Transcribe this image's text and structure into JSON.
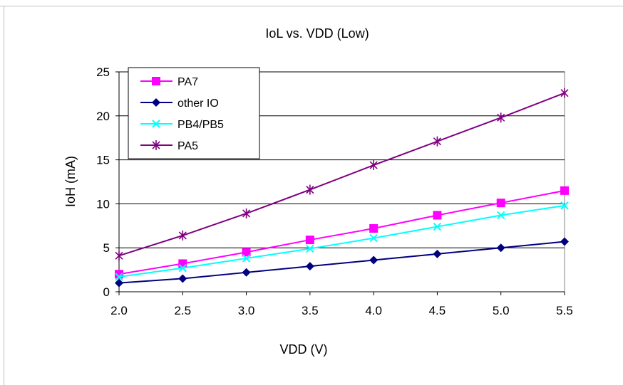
{
  "chart_data": {
    "type": "line",
    "title": "IoL vs. VDD (Low)",
    "xlabel": "VDD (V)",
    "ylabel": "IoH (mA)",
    "x": [
      2.0,
      2.5,
      3.0,
      3.5,
      4.0,
      4.5,
      5.0,
      5.5
    ],
    "x_tick_labels": [
      "2.0",
      "2.5",
      "3.0",
      "3.5",
      "4.0",
      "4.5",
      "5.0",
      "5.5"
    ],
    "y_tick_labels": [
      "0",
      "5",
      "10",
      "15",
      "20",
      "25"
    ],
    "xlim": [
      2.0,
      5.5
    ],
    "ylim": [
      0,
      25
    ],
    "y_ticks": [
      0,
      5,
      10,
      15,
      20,
      25
    ],
    "grid": "horizontal",
    "legend_position": "top-left",
    "series": [
      {
        "name": "PA7",
        "color": "#ff00ff",
        "marker": "square",
        "values": [
          2.0,
          3.2,
          4.5,
          5.9,
          7.2,
          8.7,
          10.1,
          11.5
        ]
      },
      {
        "name": "other IO",
        "color": "#000080",
        "marker": "diamond",
        "values": [
          1.0,
          1.5,
          2.2,
          2.9,
          3.6,
          4.3,
          5.0,
          5.7
        ]
      },
      {
        "name": "PB4/PB5",
        "color": "#00ffff",
        "marker": "x",
        "values": [
          1.7,
          2.7,
          3.8,
          4.9,
          6.1,
          7.4,
          8.7,
          9.8
        ]
      },
      {
        "name": "PA5",
        "color": "#800080",
        "marker": "asterisk",
        "values": [
          4.1,
          6.4,
          8.9,
          11.6,
          14.4,
          17.1,
          19.8,
          22.6
        ]
      }
    ]
  }
}
